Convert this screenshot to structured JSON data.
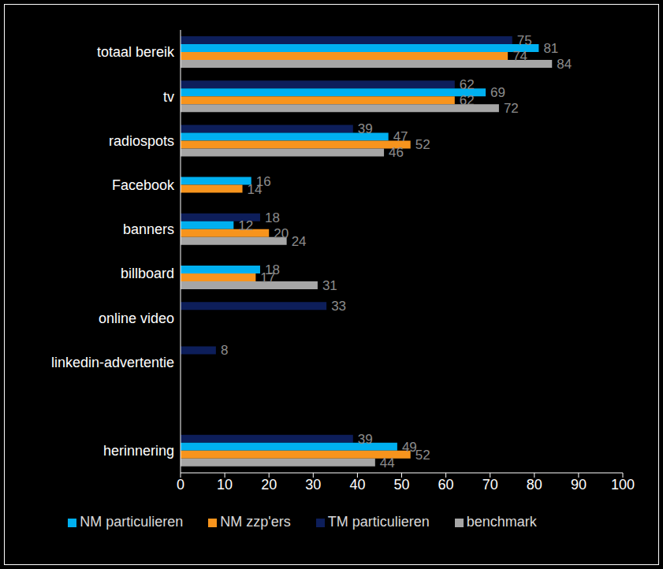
{
  "chart_data": {
    "type": "bar",
    "orientation": "horizontal",
    "categories": [
      "totaal bereik",
      "tv",
      "radiospots",
      "Facebook",
      "banners",
      "billboard",
      "online video",
      "linkedin-advertentie",
      null,
      "herinnering"
    ],
    "series": [
      {
        "name": "TM particulieren",
        "color": "#0d1e5a",
        "values": [
          75,
          62,
          39,
          null,
          18,
          null,
          33,
          8,
          null,
          39
        ]
      },
      {
        "name": "NM particulieren",
        "color": "#00b0f0",
        "values": [
          81,
          69,
          47,
          16,
          12,
          18,
          null,
          null,
          null,
          49
        ]
      },
      {
        "name": "NM zzp'ers",
        "color": "#f7941d",
        "values": [
          74,
          62,
          52,
          14,
          20,
          17,
          null,
          null,
          null,
          52
        ]
      },
      {
        "name": "benchmark",
        "color": "#a6a6a6",
        "values": [
          84,
          72,
          46,
          null,
          24,
          31,
          null,
          null,
          null,
          44
        ]
      }
    ],
    "xlim": [
      0,
      100
    ],
    "xticks": [
      0,
      10,
      20,
      30,
      40,
      50,
      60,
      70,
      80,
      90,
      100
    ],
    "data_labels": true,
    "legend": "bottom",
    "grid": false
  }
}
